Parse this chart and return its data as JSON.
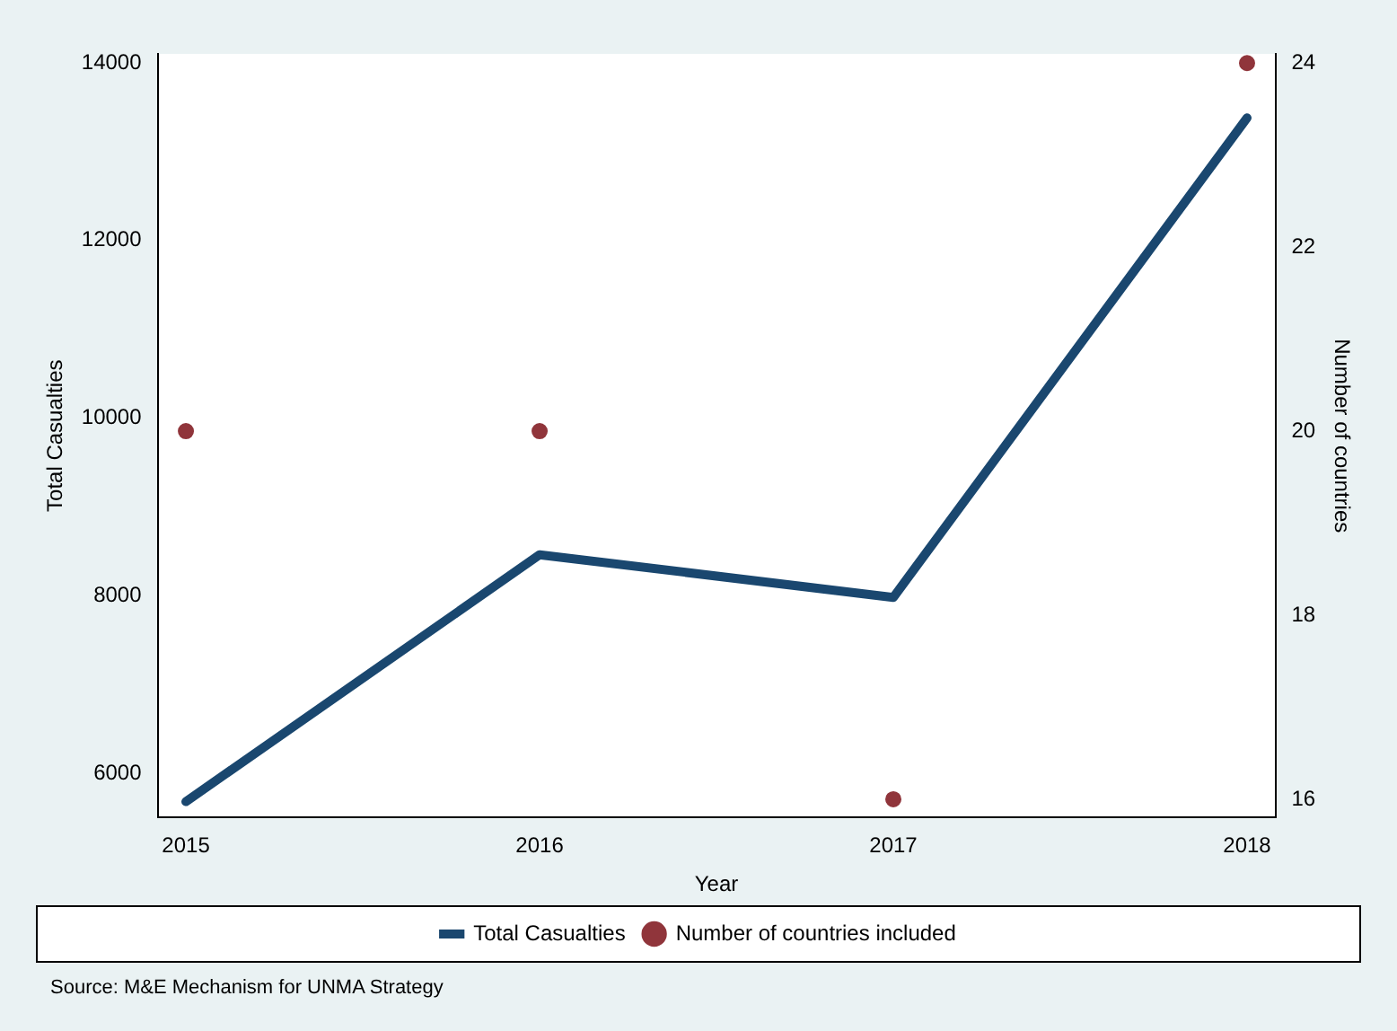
{
  "chart_data": {
    "type": "line",
    "xlabel": "Year",
    "ylabel": "Total Casualties",
    "y2label": "Number of countries",
    "x": [
      2015,
      2016,
      2017,
      2018
    ],
    "xlim": [
      2014.92,
      2018.08
    ],
    "xticks": [
      2015,
      2016,
      2017,
      2018
    ],
    "ylim": [
      5500,
      14100
    ],
    "yticks": [
      6000,
      8000,
      10000,
      12000,
      14000
    ],
    "y2lim": [
      15.8,
      24.1
    ],
    "y2ticks": [
      16,
      18,
      20,
      22,
      24
    ],
    "series": [
      {
        "name": "Total Casualties",
        "color": "#1a476f",
        "values": [
          5680,
          8460,
          7980,
          13380
        ],
        "marker": "none"
      },
      {
        "name": "Number of countries included",
        "type": "scatter",
        "axis": "y2",
        "color": "#90353b",
        "values": [
          20,
          20,
          16,
          24
        ],
        "marker": "circle"
      }
    ],
    "legend": "bottom",
    "grid": false,
    "annotations": [
      "Source: M&E Mechanism for UNMA Strategy"
    ]
  }
}
